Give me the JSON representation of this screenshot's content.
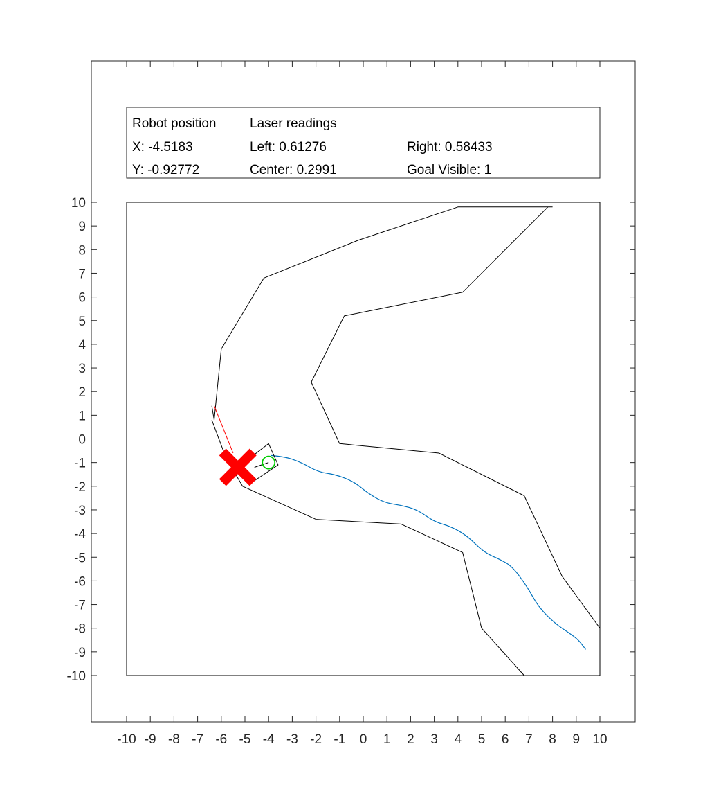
{
  "info_panel": {
    "robot_position_header": "Robot position",
    "laser_readings_header": "Laser readings",
    "x_text": "X: -4.5183",
    "y_text": "Y: -0.92772",
    "left_text": "Left: 0.61276",
    "center_text": "Center: 0.2991",
    "right_text": "Right: 0.58433",
    "goal_visible_text": "Goal Visible: 1"
  },
  "chart_data": {
    "type": "line",
    "xlim": [
      -10,
      10
    ],
    "ylim": [
      -10,
      10
    ],
    "x_ticks": [
      -10,
      -9,
      -8,
      -7,
      -6,
      -5,
      -4,
      -3,
      -2,
      -1,
      0,
      1,
      2,
      3,
      4,
      5,
      6,
      7,
      8,
      9,
      10
    ],
    "y_ticks": [
      -10,
      -9,
      -8,
      -7,
      -6,
      -5,
      -4,
      -3,
      -2,
      -1,
      0,
      1,
      2,
      3,
      4,
      5,
      6,
      7,
      8,
      9,
      10
    ],
    "grid": false,
    "colors": {
      "wall": "#000000",
      "trajectory": "#0072bd",
      "laser": "#ff0000",
      "marker": "#ff0000",
      "goal": "#00cc00"
    },
    "outer_wall": [
      [
        -6.4,
        1.4
      ],
      [
        -6.3,
        0.8
      ],
      [
        -6.0,
        3.8
      ],
      [
        -4.2,
        6.8
      ],
      [
        -0.2,
        8.4
      ],
      [
        4.0,
        9.8
      ],
      [
        8.0,
        9.8
      ]
    ],
    "outer_wall_lower": [
      [
        -6.4,
        0.8
      ],
      [
        -5.8,
        -0.8
      ],
      [
        -5.1,
        -2.0
      ],
      [
        -2.0,
        -3.4
      ],
      [
        1.6,
        -3.6
      ],
      [
        4.2,
        -4.8
      ],
      [
        5.0,
        -8.0
      ],
      [
        6.8,
        -10.0
      ]
    ],
    "inner_wall": [
      [
        7.8,
        9.8
      ],
      [
        4.2,
        6.2
      ],
      [
        -0.8,
        5.2
      ],
      [
        -2.2,
        2.4
      ],
      [
        -1.0,
        -0.2
      ],
      [
        3.2,
        -0.6
      ],
      [
        6.8,
        -2.4
      ],
      [
        8.4,
        -5.8
      ],
      [
        10.0,
        -8.0
      ]
    ],
    "trajectory": [
      [
        -3.9,
        -0.7
      ],
      [
        -3.3,
        -0.75
      ],
      [
        -2.6,
        -1.0
      ],
      [
        -1.9,
        -1.4
      ],
      [
        -1.2,
        -1.5
      ],
      [
        -0.4,
        -1.8
      ],
      [
        0.2,
        -2.3
      ],
      [
        0.9,
        -2.7
      ],
      [
        1.6,
        -2.8
      ],
      [
        2.3,
        -3.0
      ],
      [
        3.0,
        -3.5
      ],
      [
        3.7,
        -3.7
      ],
      [
        4.4,
        -4.1
      ],
      [
        5.1,
        -4.8
      ],
      [
        5.8,
        -5.1
      ],
      [
        6.3,
        -5.4
      ],
      [
        6.9,
        -6.2
      ],
      [
        7.4,
        -7.1
      ],
      [
        8.1,
        -7.8
      ],
      [
        8.7,
        -8.2
      ],
      [
        9.1,
        -8.5
      ],
      [
        9.4,
        -8.9
      ]
    ],
    "robot_box": [
      [
        -5.3,
        -1.2
      ],
      [
        -4.0,
        -0.2
      ],
      [
        -3.6,
        -1.1
      ],
      [
        -4.8,
        -1.9
      ]
    ],
    "laser_beam": [
      [
        -5.5,
        -0.6
      ],
      [
        -6.3,
        1.4
      ]
    ],
    "robot_marker": [
      -5.3,
      -1.2
    ],
    "goal_marker": [
      -4.0,
      -1.0
    ],
    "heading_line": [
      [
        -4.6,
        -1.2
      ],
      [
        -4.0,
        -1.0
      ]
    ]
  }
}
